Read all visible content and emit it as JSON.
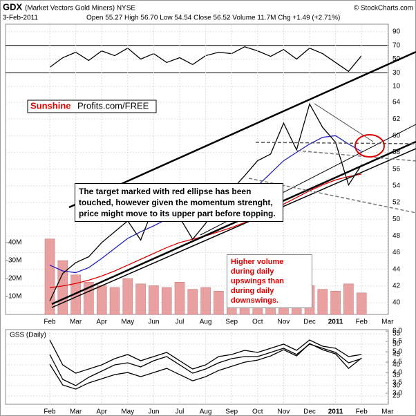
{
  "header": {
    "title": "GDX",
    "subtitle": "(Market Vectors Gold Miners) NYSE",
    "source": "© StockCharts.com",
    "date": "3-Feb-2011",
    "quote": "Open 55.27 High 56.70 Low 54.54 Close 56.52 Volume 11.7M Chg +1.49 (+2.71%)"
  },
  "chart_data": [
    {
      "type": "line",
      "ylim": [
        0,
        100
      ],
      "yticks": [
        10,
        30,
        50,
        70,
        90
      ],
      "categories": [
        "Feb",
        null,
        "Mar",
        null,
        "Apr",
        null,
        "May",
        null,
        "Jun",
        null,
        "Jul",
        null,
        "Aug",
        null,
        "Sep",
        null,
        "Oct",
        null,
        "Nov",
        null,
        "Dec",
        null,
        "2011",
        null,
        "Feb",
        null,
        "Mar",
        null
      ],
      "series": [
        {
          "color": "#000000",
          "values": [
            38,
            52,
            60,
            48,
            62,
            55,
            66,
            50,
            58,
            45,
            52,
            42,
            55,
            60,
            58,
            68,
            62,
            54,
            64,
            50,
            66,
            58,
            45,
            32,
            55,
            null,
            null,
            null
          ]
        }
      ]
    },
    {
      "type": "line",
      "ylim": [
        38.6,
        65.9
      ],
      "yticks": [
        40,
        42,
        44,
        46,
        48,
        50,
        52,
        54,
        56,
        58,
        60,
        62,
        64
      ],
      "y2lim": [
        0,
        127000000
      ],
      "y2ticks": [
        {
          "value": 10000000,
          "label": "10M"
        },
        {
          "value": 20000000,
          "label": "20M"
        },
        {
          "value": 30000000,
          "label": "30M"
        },
        {
          "value": 40000000,
          "label": "40M"
        }
      ],
      "categories": [
        "Feb",
        null,
        "Mar",
        null,
        "Apr",
        null,
        "May",
        null,
        "Jun",
        null,
        "Jul",
        null,
        "Aug",
        null,
        "Sep",
        null,
        "Oct",
        null,
        "Nov",
        null,
        "Dec",
        null,
        "2011",
        null,
        "Feb",
        null,
        "Mar",
        null
      ],
      "series": [
        {
          "type": "bar",
          "axis": "y2",
          "color": "#e8a0a0",
          "values": [
            42000000,
            30000000,
            22000000,
            18000000,
            16000000,
            15000000,
            20000000,
            17000000,
            16000000,
            15000000,
            18000000,
            14000000,
            15000000,
            13000000,
            14000000,
            13000000,
            16000000,
            15000000,
            17000000,
            15000000,
            16000000,
            14000000,
            13000000,
            17000000,
            12000000,
            null,
            null,
            null
          ]
        },
        {
          "color": "#e00000",
          "values": [
            41.8,
            42.0,
            42.3,
            42.7,
            43.2,
            43.8,
            44.5,
            45.2,
            45.9,
            46.6,
            47.2,
            47.6,
            48.0,
            48.5,
            49.0,
            49.6,
            50.3,
            51.0,
            51.8,
            52.6,
            53.4,
            54.1,
            54.7,
            55.1,
            55.4,
            null,
            null,
            null
          ]
        },
        {
          "color": "#2020c0",
          "values": [
            44.5,
            43.8,
            43.6,
            44.2,
            45.3,
            46.5,
            47.7,
            48.5,
            49.2,
            50.0,
            50.3,
            50.0,
            49.8,
            50.2,
            51.2,
            52.5,
            54.0,
            55.5,
            57.0,
            58.0,
            59.0,
            59.8,
            60.0,
            59.0,
            58.1,
            null,
            null,
            null
          ]
        },
        {
          "color": "#000000",
          "values": [
            40.2,
            43.5,
            44.8,
            45.5,
            47.2,
            48.5,
            49.8,
            47.5,
            51.5,
            53.0,
            50.2,
            47.6,
            49.5,
            51.8,
            53.5,
            55.2,
            57.0,
            57.8,
            61.5,
            58.3,
            63.8,
            61.0,
            59.2,
            54.1,
            56.52,
            null,
            null,
            null
          ]
        }
      ],
      "annotations": [
        "Sunshine",
        "Profits.com/FREE",
        "The target marked with red ellipse has been touched, however given the momentum strenght, price might move to its upper part before topping.",
        "Higher volume during daily upswings than during daily downswings."
      ]
    },
    {
      "type": "line",
      "title": "GSS (Daily)",
      "ylim": [
        21,
        57
      ],
      "yticks": [
        25,
        30,
        35,
        40,
        45,
        50,
        55
      ],
      "y2lim": [
        2.47,
        6.07
      ],
      "y2ticks": [
        {
          "value": 3,
          "label": "3.0"
        },
        {
          "value": 3.5,
          "label": "3.5"
        },
        {
          "value": 4,
          "label": "4.0"
        },
        {
          "value": 4.5,
          "label": "4.5"
        },
        {
          "value": 5,
          "label": "5.0"
        },
        {
          "value": 5.5,
          "label": "5.5"
        },
        {
          "value": 6,
          "label": "6.0"
        }
      ],
      "categories": [
        "Feb",
        null,
        "Mar",
        null,
        "Apr",
        null,
        "May",
        null,
        "Jun",
        null,
        "Jul",
        null,
        "Aug",
        null,
        "Sep",
        null,
        "Oct",
        null,
        "Nov",
        null,
        "Dec",
        null,
        "2011",
        null,
        "Feb",
        null,
        "Mar",
        null
      ],
      "series": [
        {
          "color": "#000000",
          "values": [
            52,
            40,
            36,
            38,
            40,
            43,
            45,
            42,
            44,
            46,
            42,
            38,
            40,
            44,
            45,
            47,
            46,
            48,
            50,
            47,
            52,
            49,
            48,
            44,
            45,
            null,
            null,
            null
          ]
        },
        {
          "color": "#000000",
          "values": [
            45,
            33,
            30,
            34,
            37,
            40,
            41,
            39,
            42,
            44,
            40,
            36,
            38,
            41,
            43,
            44,
            44,
            46,
            48,
            45,
            50,
            48,
            46,
            41,
            43,
            null,
            null,
            null
          ]
        },
        {
          "color": "#000000",
          "axis": "y2",
          "values": [
            4.4,
            3.4,
            3.2,
            3.5,
            3.7,
            3.9,
            4.0,
            3.8,
            4.0,
            4.2,
            3.9,
            3.6,
            3.8,
            4.1,
            4.3,
            4.5,
            4.6,
            4.8,
            5.1,
            4.8,
            5.4,
            5.1,
            4.9,
            4.2,
            4.7,
            null,
            null,
            null
          ]
        }
      ]
    }
  ]
}
